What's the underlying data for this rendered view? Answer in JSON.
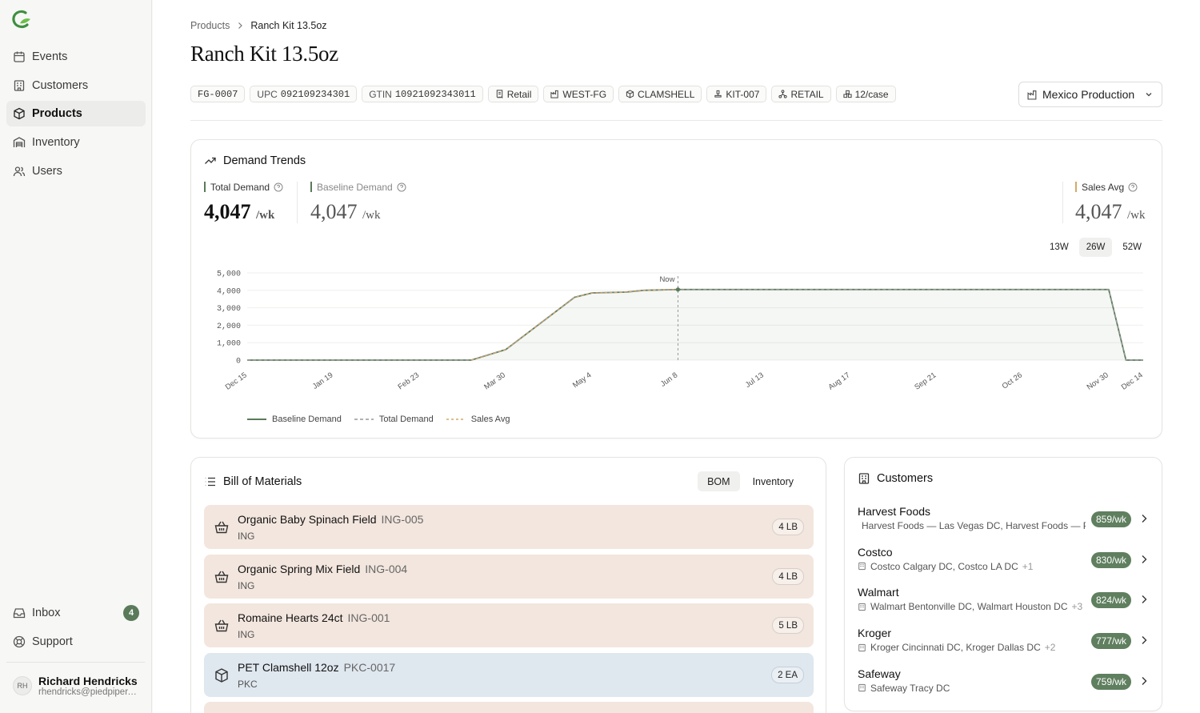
{
  "sidebar": {
    "items": [
      {
        "label": "Events",
        "icon": "calendar-icon"
      },
      {
        "label": "Customers",
        "icon": "building-icon"
      },
      {
        "label": "Products",
        "icon": "box-icon",
        "active": true
      },
      {
        "label": "Inventory",
        "icon": "warehouse-icon"
      },
      {
        "label": "Users",
        "icon": "users-icon"
      }
    ],
    "inbox_label": "Inbox",
    "inbox_count": "4",
    "support_label": "Support",
    "user": {
      "initials": "RH",
      "name": "Richard Hendricks",
      "email": "rhendricks@piedpiper.com"
    }
  },
  "breadcrumb": {
    "parent": "Products",
    "current": "Ranch Kit 13.5oz"
  },
  "page_title": "Ranch Kit 13.5oz",
  "tags": {
    "sku": "FG-0007",
    "upc_label": "UPC",
    "upc": "092109234301",
    "gtin_label": "GTIN",
    "gtin": "10921092343011",
    "channel": "Retail",
    "location": "WEST-FG",
    "pack": "CLAMSHELL",
    "kit": "KIT-007",
    "segment": "RETAIL",
    "case": "12/case"
  },
  "location_select": "Mexico Production",
  "demand": {
    "title": "Demand Trends",
    "total_label": "Total Demand",
    "total_value": "4,047",
    "total_unit": "/wk",
    "baseline_label": "Baseline Demand",
    "baseline_value": "4,047",
    "baseline_unit": "/wk",
    "sales_label": "Sales Avg",
    "sales_value": "4,047",
    "sales_unit": "/wk",
    "ranges": [
      "13W",
      "26W",
      "52W"
    ],
    "legend": [
      "Baseline Demand",
      "Total Demand",
      "Sales Avg"
    ],
    "now_label": "Now"
  },
  "chart_data": {
    "type": "line",
    "x_ticks": [
      "Dec 15",
      "Jan 19",
      "Feb 23",
      "Mar 30",
      "May 4",
      "Jun 8",
      "Jul 13",
      "Aug 17",
      "Sep 21",
      "Oct 26",
      "Nov 30",
      "Dec 14"
    ],
    "y_ticks": [
      "5,000",
      "4,000",
      "3,000",
      "2,000",
      "1,000",
      "0"
    ],
    "ylim": [
      0,
      5000
    ],
    "now_x": "Jun 8",
    "series": [
      {
        "name": "Baseline Demand",
        "color": "#5a7a5a",
        "style": "solid",
        "points": [
          [
            "Dec 15",
            0
          ],
          [
            "Mar 16",
            0
          ],
          [
            "Mar 30",
            600
          ],
          [
            "Apr 27",
            3600
          ],
          [
            "May 4",
            3850
          ],
          [
            "May 18",
            3900
          ],
          [
            "May 25",
            4000
          ],
          [
            "Jun 8",
            4047
          ],
          [
            "Nov 30",
            4047
          ],
          [
            "Dec 7",
            0
          ],
          [
            "Dec 14",
            0
          ]
        ]
      },
      {
        "name": "Total Demand",
        "color": "#999999",
        "style": "dashed",
        "points": [
          [
            "Dec 15",
            0
          ],
          [
            "Mar 16",
            0
          ],
          [
            "Mar 30",
            600
          ],
          [
            "Apr 27",
            3600
          ],
          [
            "May 4",
            3850
          ],
          [
            "May 18",
            3900
          ],
          [
            "May 25",
            4000
          ],
          [
            "Jun 8",
            4047
          ],
          [
            "Nov 30",
            4047
          ],
          [
            "Dec 7",
            0
          ],
          [
            "Dec 14",
            0
          ]
        ]
      },
      {
        "name": "Sales Avg",
        "color": "#d4a96a",
        "style": "dashed",
        "points": [
          [
            "Mar 16",
            0
          ],
          [
            "Mar 30",
            600
          ],
          [
            "Apr 27",
            3600
          ],
          [
            "May 4",
            3850
          ],
          [
            "May 18",
            3900
          ],
          [
            "May 25",
            4000
          ],
          [
            "Jun 8",
            4047
          ]
        ]
      }
    ]
  },
  "bom": {
    "title": "Bill of Materials",
    "tabs": [
      "BOM",
      "Inventory"
    ],
    "items": [
      {
        "name": "Organic Baby Spinach Field",
        "code": "ING-005",
        "type": "ING",
        "qty": "4 LB"
      },
      {
        "name": "Organic Spring Mix Field",
        "code": "ING-004",
        "type": "ING",
        "qty": "4 LB"
      },
      {
        "name": "Romaine Hearts 24ct",
        "code": "ING-001",
        "type": "ING",
        "qty": "5 LB"
      },
      {
        "name": "PET Clamshell 12oz",
        "code": "PKC-0017",
        "type": "PKC",
        "qty": "2 EA"
      }
    ]
  },
  "customers": {
    "title": "Customers",
    "rows": [
      {
        "name": "Harvest Foods",
        "detail": "Harvest Foods — Las Vegas DC, Harvest Foods — Phoenix DC",
        "more": "",
        "rate": "859/wk"
      },
      {
        "name": "Costco",
        "detail": "Costco Calgary DC, Costco LA DC",
        "more": "+1",
        "rate": "830/wk"
      },
      {
        "name": "Walmart",
        "detail": "Walmart Bentonville DC, Walmart Houston DC",
        "more": "+3",
        "rate": "824/wk"
      },
      {
        "name": "Kroger",
        "detail": "Kroger Cincinnati DC, Kroger Dallas DC",
        "more": "+2",
        "rate": "777/wk"
      },
      {
        "name": "Safeway",
        "detail": "Safeway Tracy DC",
        "more": "",
        "rate": "759/wk"
      }
    ]
  },
  "colors": {
    "accent": "#5a7a5a",
    "ing_bg": "#f3e6de",
    "pkc_bg": "#dfe7ef",
    "sales": "#d4a96a"
  }
}
